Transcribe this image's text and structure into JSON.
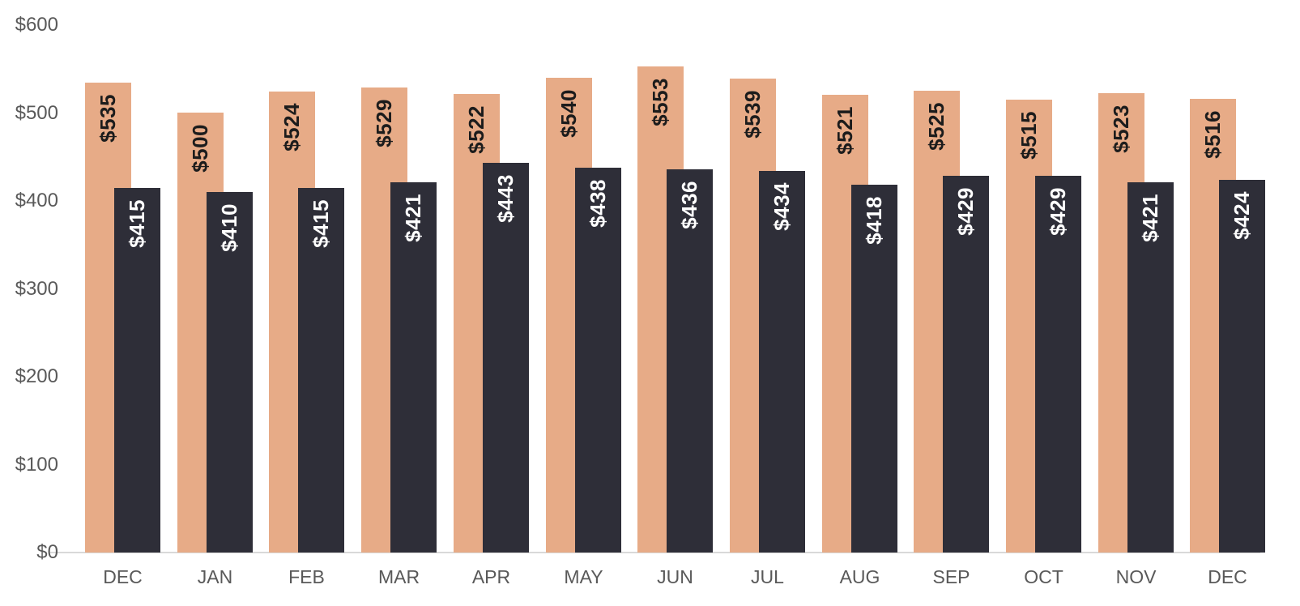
{
  "chart_data": {
    "type": "bar",
    "title": "",
    "categories": [
      "DEC",
      "JAN",
      "FEB",
      "MAR",
      "APR",
      "MAY",
      "JUN",
      "JUL",
      "AUG",
      "SEP",
      "OCT",
      "NOV",
      "DEC"
    ],
    "series": [
      {
        "name": "peach",
        "color": "#e7ab87",
        "label_color": "#1c1c1c",
        "values": [
          535,
          500,
          524,
          529,
          522,
          540,
          553,
          539,
          521,
          525,
          515,
          523,
          516
        ]
      },
      {
        "name": "charcoal",
        "color": "#2e2e38",
        "label_color": "#ffffff",
        "values": [
          415,
          410,
          415,
          421,
          443,
          438,
          436,
          434,
          418,
          429,
          429,
          421,
          424
        ]
      }
    ],
    "value_prefix": "$",
    "bar_label_rotation": "vertical-bottom-to-top",
    "y_axis": {
      "ticks": [
        {
          "label": "$0",
          "value": 0
        },
        {
          "label": "$100",
          "value": 100
        },
        {
          "label": "$200",
          "value": 200
        },
        {
          "label": "$300",
          "value": 300
        },
        {
          "label": "$400",
          "value": 400
        },
        {
          "label": "$500",
          "value": 500
        },
        {
          "label": "$600",
          "value": 600
        }
      ],
      "ylim": [
        0,
        600
      ],
      "tick_color": "#595959"
    },
    "x_axis": {
      "tick_color": "#595959"
    },
    "grid": "off",
    "legend": "none",
    "axis_line_color": "#d9d9d9",
    "background_color": "#ffffff"
  }
}
